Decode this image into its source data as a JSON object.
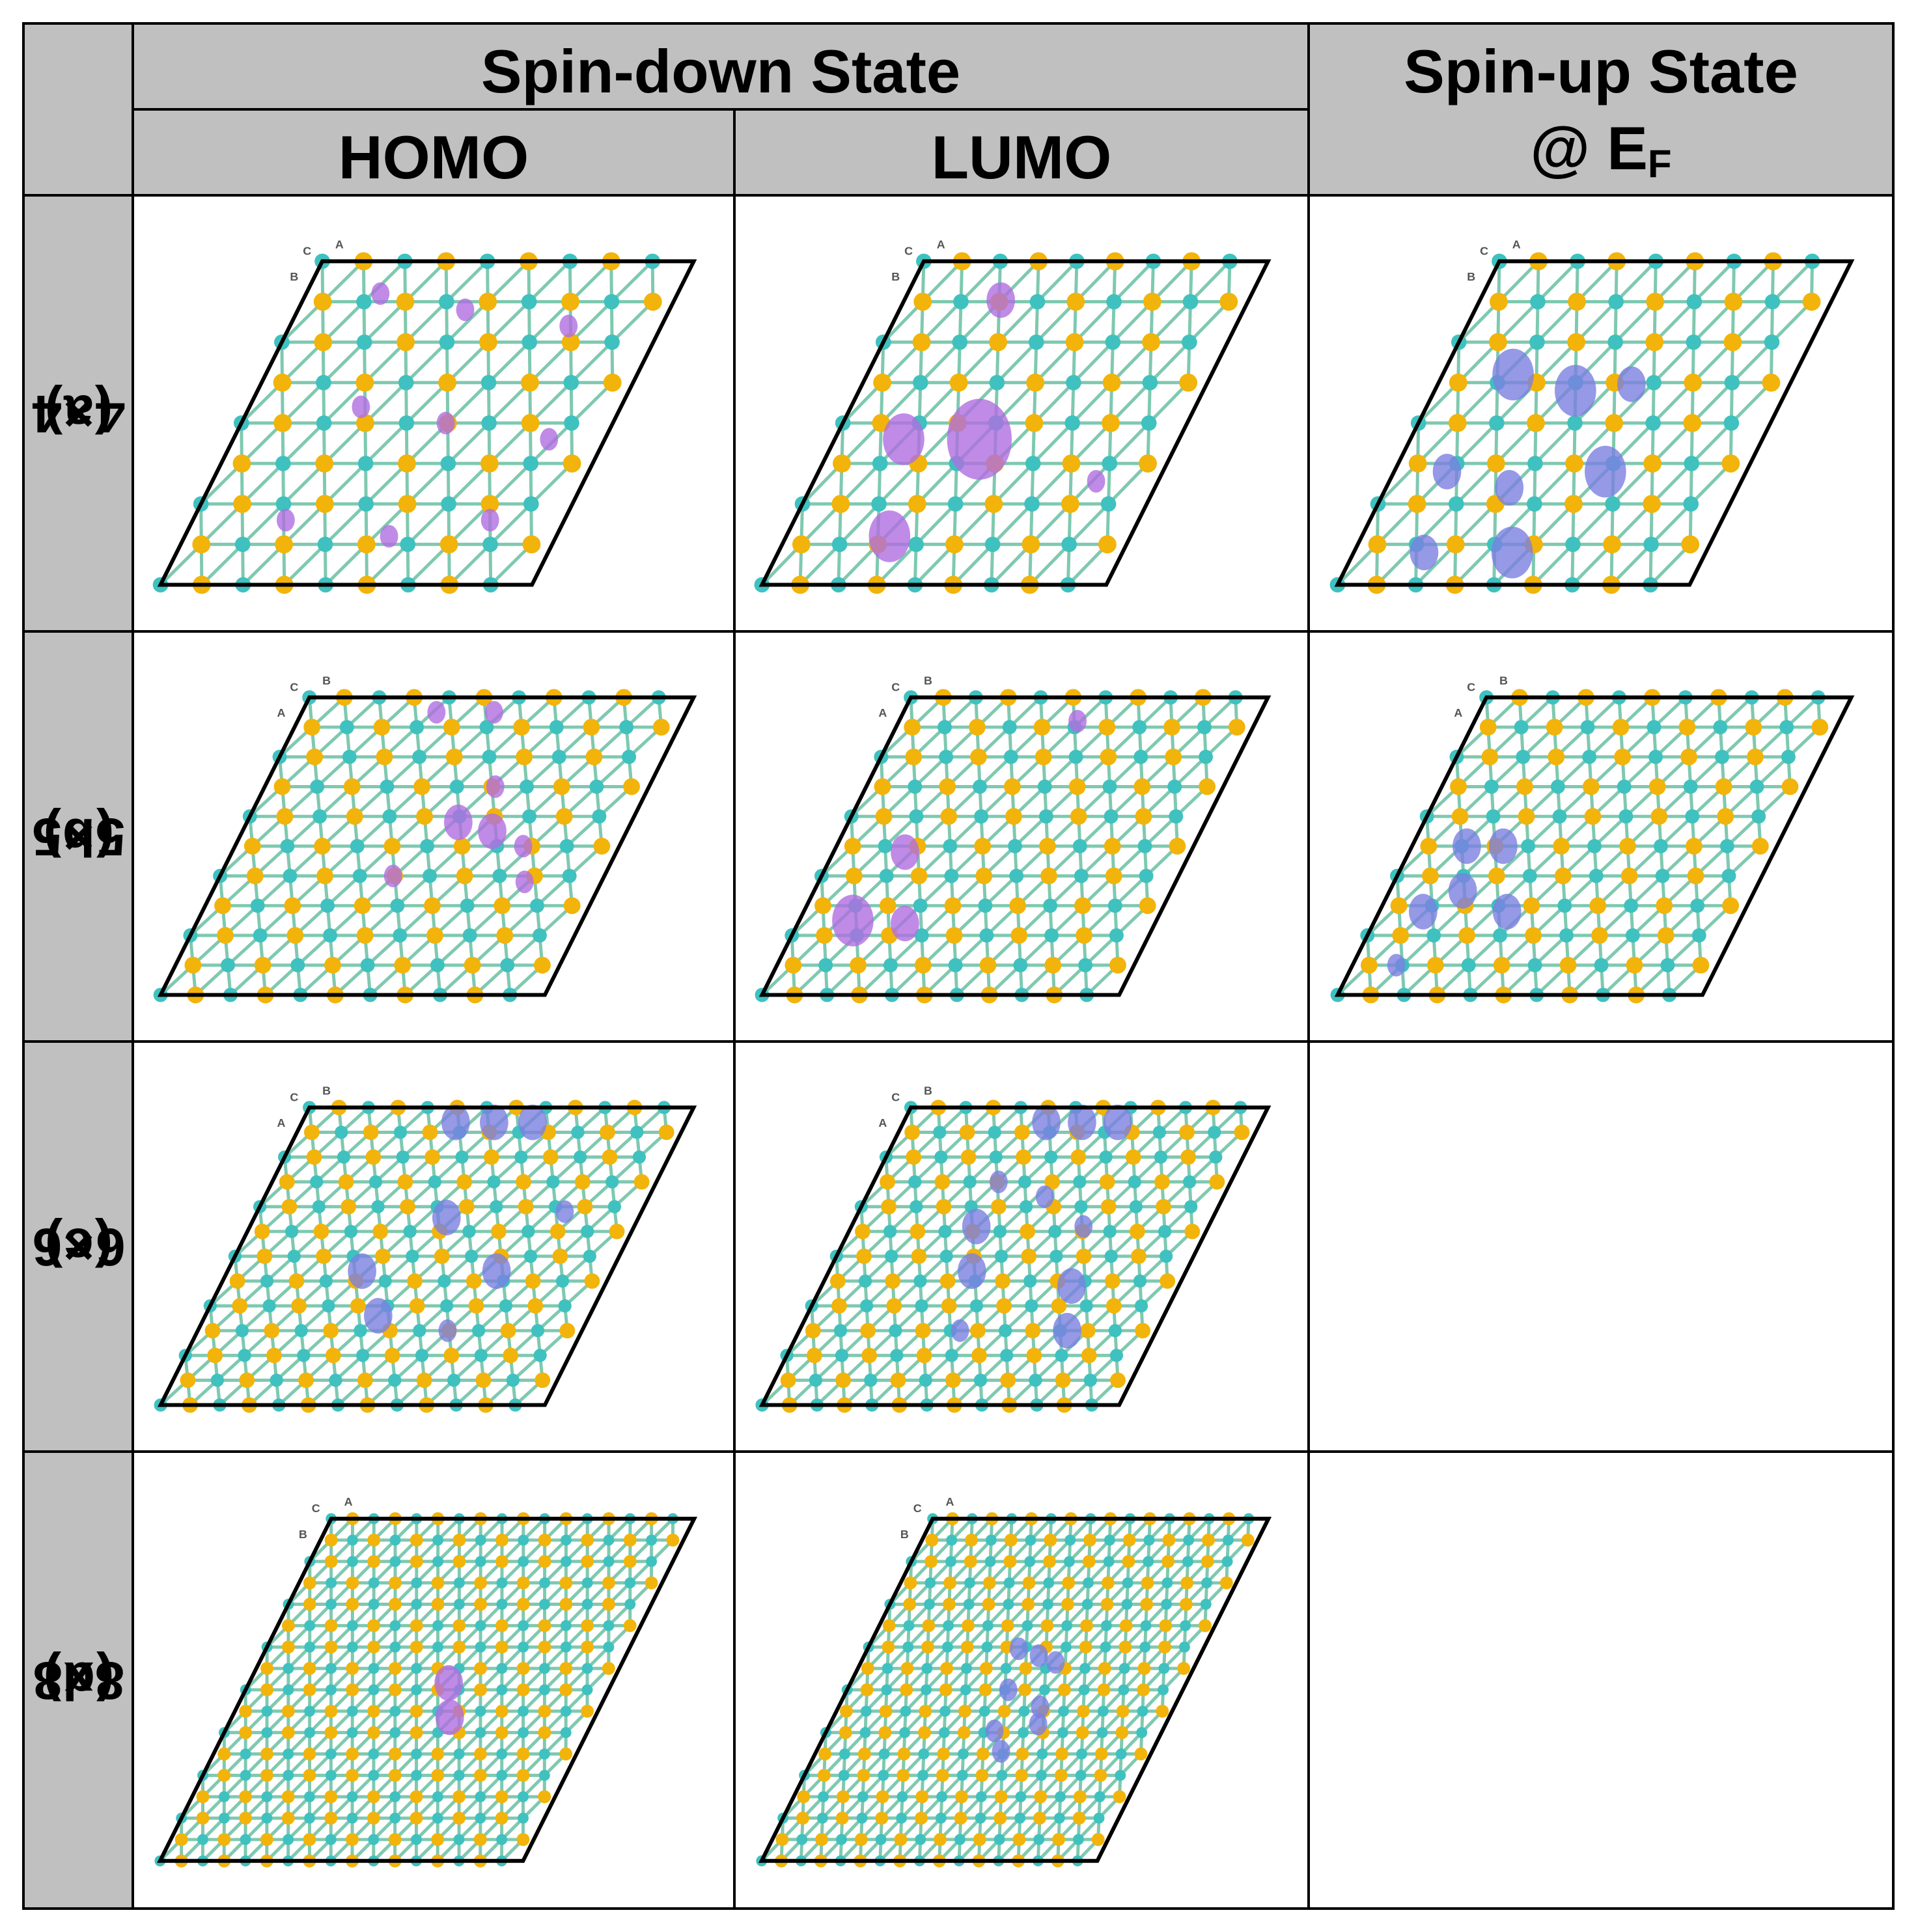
{
  "header": {
    "spin_down_title": "Spin-down State",
    "spin_up_title": "Spin-up State",
    "spin_up_subtitle_prefix": "@ E",
    "spin_up_subtitle_sub": "F",
    "homo_label": "HOMO",
    "lumo_label": "LUMO"
  },
  "rows": [
    {
      "tag": "(a)",
      "size": "4×4",
      "axis_letters": [
        "C",
        "A",
        "B"
      ]
    },
    {
      "tag": "(b)",
      "size": "5×5",
      "axis_letters": [
        "C",
        "B",
        "A"
      ]
    },
    {
      "tag": "(c)",
      "size": "6×6",
      "axis_letters": [
        "C",
        "B",
        "A"
      ]
    },
    {
      "tag": "(d)",
      "size": "8x8",
      "axis_letters": [
        "C",
        "A",
        "B"
      ]
    }
  ],
  "colors": {
    "header_bg": "#c0c0c0",
    "sulfur_atom": "#f2b40a",
    "metal_atom": "#3fc1c0",
    "homo_lumo_density": "#b06ee0",
    "spin_up_density": "#7a7fe0",
    "border": "#000000"
  },
  "panels": [
    {
      "row": 0,
      "col": 0,
      "n": 4,
      "blobs": [
        [
          0.2,
          0.1,
          "s"
        ],
        [
          0.45,
          0.15,
          "s"
        ],
        [
          0.75,
          0.2,
          "s"
        ],
        [
          0.3,
          0.45,
          "s"
        ],
        [
          0.55,
          0.5,
          "s"
        ],
        [
          0.85,
          0.55,
          "s"
        ],
        [
          0.25,
          0.8,
          "s"
        ],
        [
          0.55,
          0.85,
          "s"
        ],
        [
          0.8,
          0.8,
          "s"
        ]
      ],
      "color": "homo_lumo_density"
    },
    {
      "row": 0,
      "col": 1,
      "n": 4,
      "blobs": [
        [
          0.28,
          0.12,
          "m"
        ],
        [
          0.2,
          0.55,
          "l"
        ],
        [
          0.42,
          0.55,
          "xl"
        ],
        [
          0.3,
          0.85,
          "l"
        ],
        [
          0.82,
          0.68,
          "s"
        ]
      ],
      "color": "homo_lumo_density"
    },
    {
      "row": 0,
      "col": 2,
      "n": 4,
      "blobs": [
        [
          0.2,
          0.35,
          "l"
        ],
        [
          0.4,
          0.4,
          "l"
        ],
        [
          0.55,
          0.38,
          "m"
        ],
        [
          0.15,
          0.65,
          "m"
        ],
        [
          0.35,
          0.7,
          "m"
        ],
        [
          0.6,
          0.65,
          "l"
        ],
        [
          0.2,
          0.9,
          "m"
        ],
        [
          0.45,
          0.9,
          "l"
        ]
      ],
      "color": "spin_up_density"
    },
    {
      "row": 1,
      "col": 0,
      "n": 5,
      "blobs": [
        [
          0.35,
          0.05,
          "s"
        ],
        [
          0.5,
          0.05,
          "s"
        ],
        [
          0.6,
          0.3,
          "s"
        ],
        [
          0.55,
          0.42,
          "m"
        ],
        [
          0.65,
          0.45,
          "m"
        ],
        [
          0.75,
          0.5,
          "s"
        ],
        [
          0.8,
          0.62,
          "s"
        ],
        [
          0.45,
          0.6,
          "s"
        ]
      ],
      "color": "homo_lumo_density"
    },
    {
      "row": 1,
      "col": 1,
      "n": 5,
      "blobs": [
        [
          0.2,
          0.52,
          "m"
        ],
        [
          0.15,
          0.75,
          "l"
        ],
        [
          0.3,
          0.76,
          "m"
        ],
        [
          0.5,
          0.08,
          "s"
        ]
      ],
      "color": "homo_lumo_density"
    },
    {
      "row": 1,
      "col": 2,
      "n": 5,
      "blobs": [
        [
          0.15,
          0.5,
          "m"
        ],
        [
          0.25,
          0.5,
          "m"
        ],
        [
          0.2,
          0.65,
          "m"
        ],
        [
          0.12,
          0.72,
          "m"
        ],
        [
          0.35,
          0.72,
          "m"
        ],
        [
          0.12,
          0.9,
          "s"
        ]
      ],
      "color": "spin_up_density"
    },
    {
      "row": 2,
      "col": 0,
      "n": 6,
      "blobs": [
        [
          0.4,
          0.05,
          "m"
        ],
        [
          0.5,
          0.05,
          "m"
        ],
        [
          0.6,
          0.05,
          "m"
        ],
        [
          0.5,
          0.37,
          "m"
        ],
        [
          0.35,
          0.55,
          "m"
        ],
        [
          0.7,
          0.55,
          "m"
        ],
        [
          0.45,
          0.7,
          "m"
        ],
        [
          0.8,
          0.35,
          "s"
        ],
        [
          0.65,
          0.75,
          "s"
        ]
      ],
      "color": "spin_up_density"
    },
    {
      "row": 2,
      "col": 1,
      "n": 6,
      "blobs": [
        [
          0.4,
          0.05,
          "m"
        ],
        [
          0.5,
          0.05,
          "m"
        ],
        [
          0.6,
          0.05,
          "m"
        ],
        [
          0.35,
          0.25,
          "s"
        ],
        [
          0.5,
          0.3,
          "s"
        ],
        [
          0.35,
          0.4,
          "m"
        ],
        [
          0.65,
          0.4,
          "s"
        ],
        [
          0.4,
          0.55,
          "m"
        ],
        [
          0.7,
          0.6,
          "m"
        ],
        [
          0.45,
          0.75,
          "s"
        ],
        [
          0.75,
          0.75,
          "m"
        ]
      ],
      "color": "spin_up_density"
    },
    {
      "row": 2,
      "col": 2,
      "n": 0,
      "blobs": [],
      "color": "spin_up_density"
    },
    {
      "row": 3,
      "col": 0,
      "n": 8,
      "blobs": [
        [
          0.55,
          0.48,
          "m"
        ],
        [
          0.6,
          0.58,
          "m"
        ]
      ],
      "color": "homo_lumo_density"
    },
    {
      "row": 3,
      "col": 1,
      "n": 8,
      "blobs": [
        [
          0.45,
          0.38,
          "s"
        ],
        [
          0.52,
          0.4,
          "s"
        ],
        [
          0.58,
          0.42,
          "s"
        ],
        [
          0.48,
          0.5,
          "s"
        ],
        [
          0.6,
          0.55,
          "s"
        ],
        [
          0.5,
          0.62,
          "s"
        ],
        [
          0.55,
          0.68,
          "s"
        ],
        [
          0.62,
          0.6,
          "s"
        ]
      ],
      "color": "spin_up_density"
    },
    {
      "row": 3,
      "col": 2,
      "n": 0,
      "blobs": [],
      "color": "spin_up_density"
    }
  ]
}
